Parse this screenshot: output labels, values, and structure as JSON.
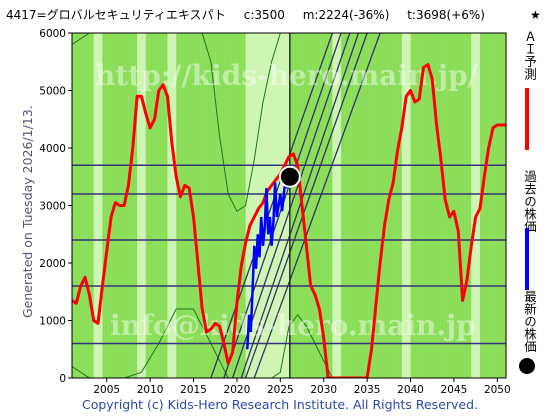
{
  "header": {
    "code_name": "4417=グロバルセキュリティエキスパト",
    "current": "c:3500",
    "min": "m:2224(-36%)",
    "target": "t:3698(+6%)",
    "star": "★"
  },
  "side_caption": "Generated on Tuesday 2026/1/13.",
  "footer": "Copyright (c) Kids-Hero Research Institute. All Rights Reserved.",
  "legend": {
    "ai_forecast": "ＡＩ予測",
    "past_price": "過去の株価",
    "latest_price": "最新の株価",
    "ai_color": "#ff0000",
    "past_color": "#0000ff",
    "latest_color": "#000000"
  },
  "watermarks": [
    "http://kids-hero.main.jp/",
    "info@kids-hero.main.jp"
  ],
  "colors": {
    "background_green": "#88dd55",
    "light_green": "#ccf5b0",
    "band_line": "#1a7a1a",
    "hline": "#333377",
    "trend": "#333366"
  },
  "chart_data": {
    "type": "line",
    "xlim": [
      2001,
      2051
    ],
    "ylim": [
      0,
      6000
    ],
    "xticks": [
      2005,
      2010,
      2015,
      2020,
      2025,
      2030,
      2035,
      2040,
      2045,
      2050
    ],
    "yticks": [
      0,
      1000,
      2000,
      3000,
      4000,
      5000,
      6000
    ],
    "current_year": 2026.1,
    "current_price": 3500,
    "horizontal_levels": [
      600,
      1600,
      2400,
      3200,
      3700
    ],
    "ai_forecast": {
      "x": [
        2001,
        2001.5,
        2002,
        2002.5,
        2003,
        2003.5,
        2004,
        2004.5,
        2005,
        2005.5,
        2006,
        2006.5,
        2007,
        2007.5,
        2008,
        2008.5,
        2009,
        2009.5,
        2010,
        2010.5,
        2011,
        2011.5,
        2012,
        2012.5,
        2013,
        2013.5,
        2014,
        2014.5,
        2015,
        2015.5,
        2016,
        2016.5,
        2017,
        2017.5,
        2018,
        2018.5,
        2019,
        2019.5,
        2020,
        2020.5,
        2021,
        2021.5,
        2022,
        2022.5,
        2023,
        2023.5,
        2024,
        2024.5,
        2025,
        2025.5,
        2026,
        2026.5,
        2027,
        2027.5,
        2028,
        2028.5,
        2029,
        2029.5,
        2030,
        2030.5,
        2031,
        2031.5,
        2032,
        2032.5,
        2033,
        2033.5,
        2034,
        2034.5,
        2035,
        2035.5,
        2036,
        2036.5,
        2037,
        2037.5,
        2038,
        2038.5,
        2039,
        2039.5,
        2040,
        2040.5,
        2041,
        2041.5,
        2042,
        2042.5,
        2043,
        2043.5,
        2044,
        2044.5,
        2045,
        2045.5,
        2046,
        2046.5,
        2047,
        2047.5,
        2048,
        2048.5,
        2049,
        2049.5,
        2050,
        2050.5,
        2051
      ],
      "y": [
        1350,
        1300,
        1600,
        1750,
        1450,
        1000,
        950,
        1600,
        2200,
        2800,
        3050,
        3000,
        3000,
        3350,
        4000,
        4900,
        4900,
        4600,
        4350,
        4500,
        5000,
        5100,
        4900,
        4100,
        3500,
        3150,
        3350,
        3300,
        2800,
        2000,
        1200,
        800,
        850,
        950,
        900,
        600,
        250,
        450,
        1300,
        1950,
        2350,
        2650,
        2800,
        2950,
        3050,
        3250,
        3350,
        3450,
        3550,
        3700,
        3850,
        3900,
        3700,
        3000,
        2300,
        1600,
        1450,
        1200,
        700,
        0,
        0,
        0,
        0,
        0,
        0,
        0,
        0,
        0,
        0,
        500,
        1250,
        2000,
        2650,
        3100,
        3400,
        3950,
        4350,
        4900,
        5000,
        4800,
        4850,
        5400,
        5450,
        5200,
        4400,
        3800,
        3100,
        2800,
        2900,
        2550,
        1350,
        1700,
        2300,
        2800,
        2950,
        3500,
        4000,
        4350,
        4400,
        4400,
        4400
      ]
    },
    "past_price": {
      "x": [
        2021.2,
        2021.4,
        2021.6,
        2021.8,
        2022,
        2022.2,
        2022.4,
        2022.6,
        2022.8,
        2023,
        2023.2,
        2023.4,
        2023.6,
        2023.8,
        2024,
        2024.2,
        2024.4,
        2024.6,
        2024.8,
        2025,
        2025.2,
        2025.4,
        2025.6,
        2025.8,
        2026
      ],
      "y": [
        500,
        1100,
        800,
        1500,
        2300,
        1900,
        2500,
        2100,
        2800,
        2300,
        2600,
        3300,
        2500,
        2800,
        2300,
        2700,
        3400,
        2800,
        3000,
        3200,
        2900,
        3200,
        3450,
        3300,
        3500
      ]
    },
    "trend_lines": [
      {
        "from": [
          2017,
          0
        ],
        "to": [
          2031,
          6000
        ]
      },
      {
        "from": [
          2018.5,
          0
        ],
        "to": [
          2032,
          6000
        ]
      },
      {
        "from": [
          2019.5,
          0
        ],
        "to": [
          2033,
          6000
        ]
      },
      {
        "from": [
          2020.5,
          0
        ],
        "to": [
          2034,
          6000
        ]
      },
      {
        "from": [
          2021,
          0
        ],
        "to": [
          2035,
          6000
        ]
      },
      {
        "from": [
          2022,
          0
        ],
        "to": [
          2036.5,
          6000
        ]
      }
    ],
    "upper_band": {
      "x": [
        2001,
        2003,
        2004,
        2006,
        2008,
        2010,
        2012,
        2014,
        2016,
        2017,
        2018,
        2019,
        2020,
        2021,
        2022,
        2023,
        2024,
        2025,
        2026,
        2027,
        2028,
        2029,
        2030,
        2032,
        2034,
        2036,
        2038,
        2040,
        2042,
        2044,
        2046,
        2048,
        2050,
        2051
      ],
      "y": [
        5800,
        6000,
        6000,
        6000,
        6000,
        6000,
        6000,
        6000,
        6000,
        5500,
        4200,
        3200,
        2900,
        3000,
        3800,
        4800,
        5500,
        6000,
        6000,
        6000,
        6000,
        6000,
        6000,
        6000,
        6000,
        6000,
        6000,
        6000,
        6000,
        6000,
        6000,
        6000,
        6000,
        6000
      ]
    },
    "lower_band": {
      "x": [
        2001,
        2003,
        2005,
        2007,
        2009,
        2011,
        2013,
        2015,
        2016,
        2017,
        2018,
        2019,
        2020,
        2021,
        2022,
        2023,
        2024,
        2025,
        2026,
        2027,
        2028,
        2029,
        2030,
        2031,
        2033,
        2035,
        2037,
        2039,
        2041,
        2043,
        2045,
        2047,
        2049,
        2051
      ],
      "y": [
        200,
        0,
        0,
        0,
        100,
        600,
        1200,
        1200,
        900,
        600,
        300,
        0,
        0,
        0,
        0,
        0,
        0,
        100,
        900,
        1100,
        900,
        600,
        300,
        0,
        0,
        0,
        0,
        0,
        0,
        0,
        0,
        0,
        0,
        0
      ]
    },
    "light_zones": [
      [
        2003.5,
        2004.5
      ],
      [
        2008.5,
        2009.5
      ],
      [
        2012,
        2013
      ],
      [
        2021,
        2026
      ],
      [
        2031,
        2032
      ],
      [
        2039,
        2040
      ],
      [
        2047,
        2048
      ]
    ]
  }
}
